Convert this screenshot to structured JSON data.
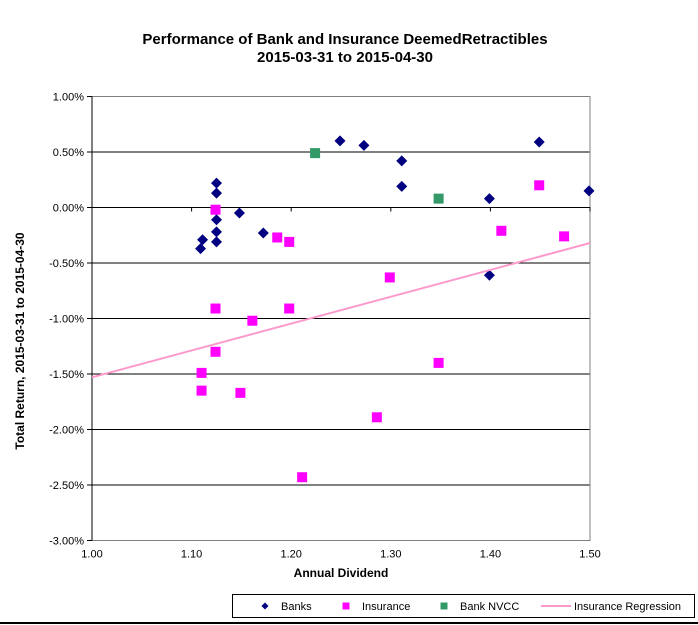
{
  "chart_data": {
    "type": "scatter",
    "title": "Performance of Bank and Insurance DeemedRetractibles 2015-03-31 to 2015-04-30",
    "title_lines": [
      "Performance of Bank and Insurance DeemedRetractibles",
      "2015-03-31 to 2015-04-30"
    ],
    "xlabel": "Annual Dividend",
    "ylabel": "Total Return, 2015-03-31  to 2015-04-30",
    "xlim": [
      1.0,
      1.5
    ],
    "ylim": [
      -3.0,
      1.0
    ],
    "x_tick_labels": [
      "1.00",
      "1.10",
      "1.20",
      "1.30",
      "1.40",
      "1.50"
    ],
    "y_tick_labels": [
      "1.00%",
      "0.50%",
      "0.00%",
      "-0.50%",
      "-1.00%",
      "-1.50%",
      "-2.00%",
      "-2.50%",
      "-3.00%"
    ],
    "grid": "horizontal",
    "legend_position": "bottom",
    "colors": {
      "banks": "#000080",
      "insurance": "#FF00FF",
      "bank_nvcc": "#339966",
      "regression": "#FF99CC",
      "gridline": "#000000",
      "plot_border": "#808080"
    },
    "series": [
      {
        "name": "Banks",
        "marker": "diamond",
        "color": "#000080",
        "points": [
          [
            1.125,
            0.22
          ],
          [
            1.125,
            0.13
          ],
          [
            1.125,
            -0.11
          ],
          [
            1.148,
            -0.05
          ],
          [
            1.172,
            -0.23
          ],
          [
            1.125,
            -0.22
          ],
          [
            1.125,
            -0.31
          ],
          [
            1.111,
            -0.29
          ],
          [
            1.109,
            -0.37
          ],
          [
            1.249,
            0.6
          ],
          [
            1.273,
            0.56
          ],
          [
            1.311,
            0.42
          ],
          [
            1.311,
            0.19
          ],
          [
            1.399,
            0.08
          ],
          [
            1.399,
            -0.61
          ],
          [
            1.449,
            0.59
          ],
          [
            1.499,
            0.15
          ]
        ]
      },
      {
        "name": "Insurance",
        "marker": "square",
        "color": "#FF00FF",
        "points": [
          [
            1.124,
            -0.02
          ],
          [
            1.186,
            -0.27
          ],
          [
            1.198,
            -0.31
          ],
          [
            1.124,
            -0.91
          ],
          [
            1.161,
            -1.02
          ],
          [
            1.198,
            -0.91
          ],
          [
            1.124,
            -1.3
          ],
          [
            1.11,
            -1.49
          ],
          [
            1.11,
            -1.65
          ],
          [
            1.149,
            -1.67
          ],
          [
            1.211,
            -2.43
          ],
          [
            1.299,
            -0.63
          ],
          [
            1.286,
            -1.89
          ],
          [
            1.348,
            -1.4
          ],
          [
            1.449,
            0.2
          ],
          [
            1.411,
            -0.21
          ],
          [
            1.474,
            -0.26
          ]
        ]
      },
      {
        "name": "Bank NVCC",
        "marker": "square",
        "color": "#339966",
        "points": [
          [
            1.224,
            0.49
          ],
          [
            1.348,
            0.08
          ]
        ]
      },
      {
        "name": "Insurance Regression",
        "marker": "line",
        "color": "#FF99CC",
        "points": [
          [
            1.0,
            -1.53
          ],
          [
            1.5,
            -0.32
          ]
        ]
      }
    ]
  }
}
